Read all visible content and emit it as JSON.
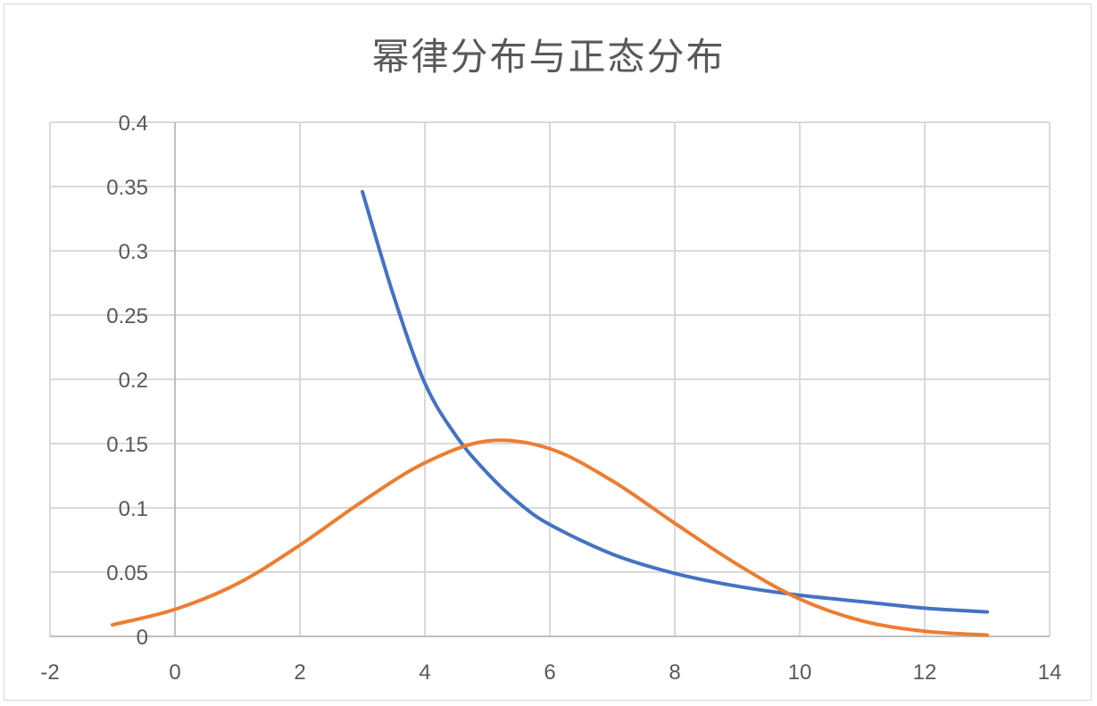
{
  "chart_data": {
    "type": "scatter",
    "title": "幂律分布与正态分布",
    "xlabel": "",
    "ylabel": "",
    "xlim": [
      -2,
      14
    ],
    "ylim": [
      0,
      0.4
    ],
    "x_ticks": [
      "-2",
      "0",
      "2",
      "4",
      "6",
      "8",
      "10",
      "12",
      "14"
    ],
    "y_ticks": [
      "0",
      "0.05",
      "0.1",
      "0.15",
      "0.2",
      "0.25",
      "0.3",
      "0.35",
      "0.4"
    ],
    "grid": true,
    "legend": "none",
    "series": [
      {
        "color": "#4472c4",
        "x": [
          3,
          3.5,
          4,
          4.5,
          5,
          5.5,
          6,
          7,
          8,
          9,
          10,
          11,
          12,
          13
        ],
        "y": [
          0.346,
          0.265,
          0.197,
          0.156,
          0.127,
          0.104,
          0.087,
          0.064,
          0.049,
          0.039,
          0.032,
          0.027,
          0.022,
          0.019
        ]
      },
      {
        "color": "#ed7d31",
        "x": [
          -1,
          0,
          1,
          2,
          3,
          4,
          5,
          6,
          7,
          8,
          9,
          10,
          11,
          12,
          13
        ],
        "y": [
          0.009,
          0.021,
          0.041,
          0.071,
          0.105,
          0.135,
          0.152,
          0.146,
          0.121,
          0.088,
          0.056,
          0.029,
          0.012,
          0.004,
          0.001
        ]
      }
    ]
  }
}
